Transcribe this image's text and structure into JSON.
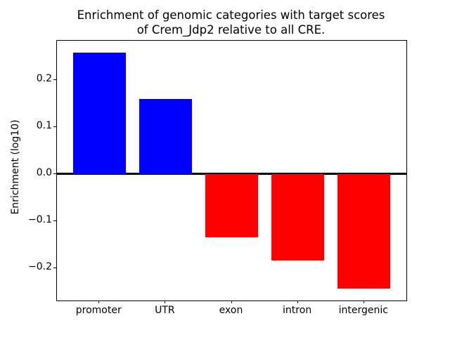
{
  "chart_data": {
    "type": "bar",
    "title": "Enrichment of genomic categories with target scores\nof Crem_Jdp2 relative to all CRE.",
    "xlabel": "",
    "ylabel": "Enrichment (log10)",
    "categories": [
      "promoter",
      "UTR",
      "exon",
      "intron",
      "intergenic"
    ],
    "values": [
      0.258,
      0.159,
      -0.134,
      -0.184,
      -0.243
    ],
    "bar_colors": {
      "positive": "#0000ff",
      "negative": "#ff0000"
    },
    "ylim": [
      -0.269,
      0.283
    ],
    "yticks": [
      {
        "value": 0.2,
        "label": "0.2"
      },
      {
        "value": 0.1,
        "label": "0.1"
      },
      {
        "value": 0.0,
        "label": "0.0"
      },
      {
        "value": -0.1,
        "label": "−0.1"
      },
      {
        "value": -0.2,
        "label": "−0.2"
      }
    ],
    "zero_line": {
      "value": 0.0,
      "color": "#000000"
    },
    "grid": false,
    "legend": null,
    "axes_edge_color": "#000000",
    "background_color": "#ffffff"
  }
}
